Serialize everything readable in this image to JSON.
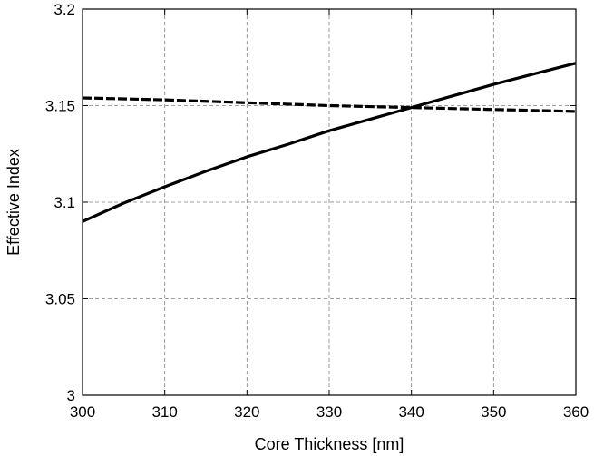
{
  "chart_data": {
    "type": "line",
    "title": "",
    "xlabel": "Core Thickness [nm]",
    "ylabel": "Effective Index",
    "xlim": [
      300,
      360
    ],
    "ylim": [
      3.0,
      3.2
    ],
    "x_ticks": [
      300,
      310,
      320,
      330,
      340,
      350,
      360
    ],
    "x_tick_labels": [
      "300",
      "310",
      "320",
      "330",
      "340",
      "350",
      "360"
    ],
    "y_ticks": [
      3.0,
      3.05,
      3.1,
      3.15,
      3.2
    ],
    "y_tick_labels": [
      "3",
      "3.05",
      "3.1",
      "3.15",
      "3.2"
    ],
    "grid": true,
    "series": [
      {
        "style": "solid",
        "color": "#000000",
        "x": [
          300,
          305,
          310,
          315,
          320,
          325,
          330,
          335,
          340,
          345,
          350,
          355,
          360
        ],
        "y": [
          3.09,
          3.0995,
          3.108,
          3.116,
          3.1235,
          3.13,
          3.137,
          3.143,
          3.149,
          3.155,
          3.161,
          3.1665,
          3.172
        ]
      },
      {
        "style": "dashed",
        "color": "#000000",
        "x": [
          300,
          310,
          320,
          330,
          340,
          350,
          360
        ],
        "y": [
          3.154,
          3.153,
          3.1515,
          3.15,
          3.149,
          3.148,
          3.147
        ]
      }
    ]
  }
}
